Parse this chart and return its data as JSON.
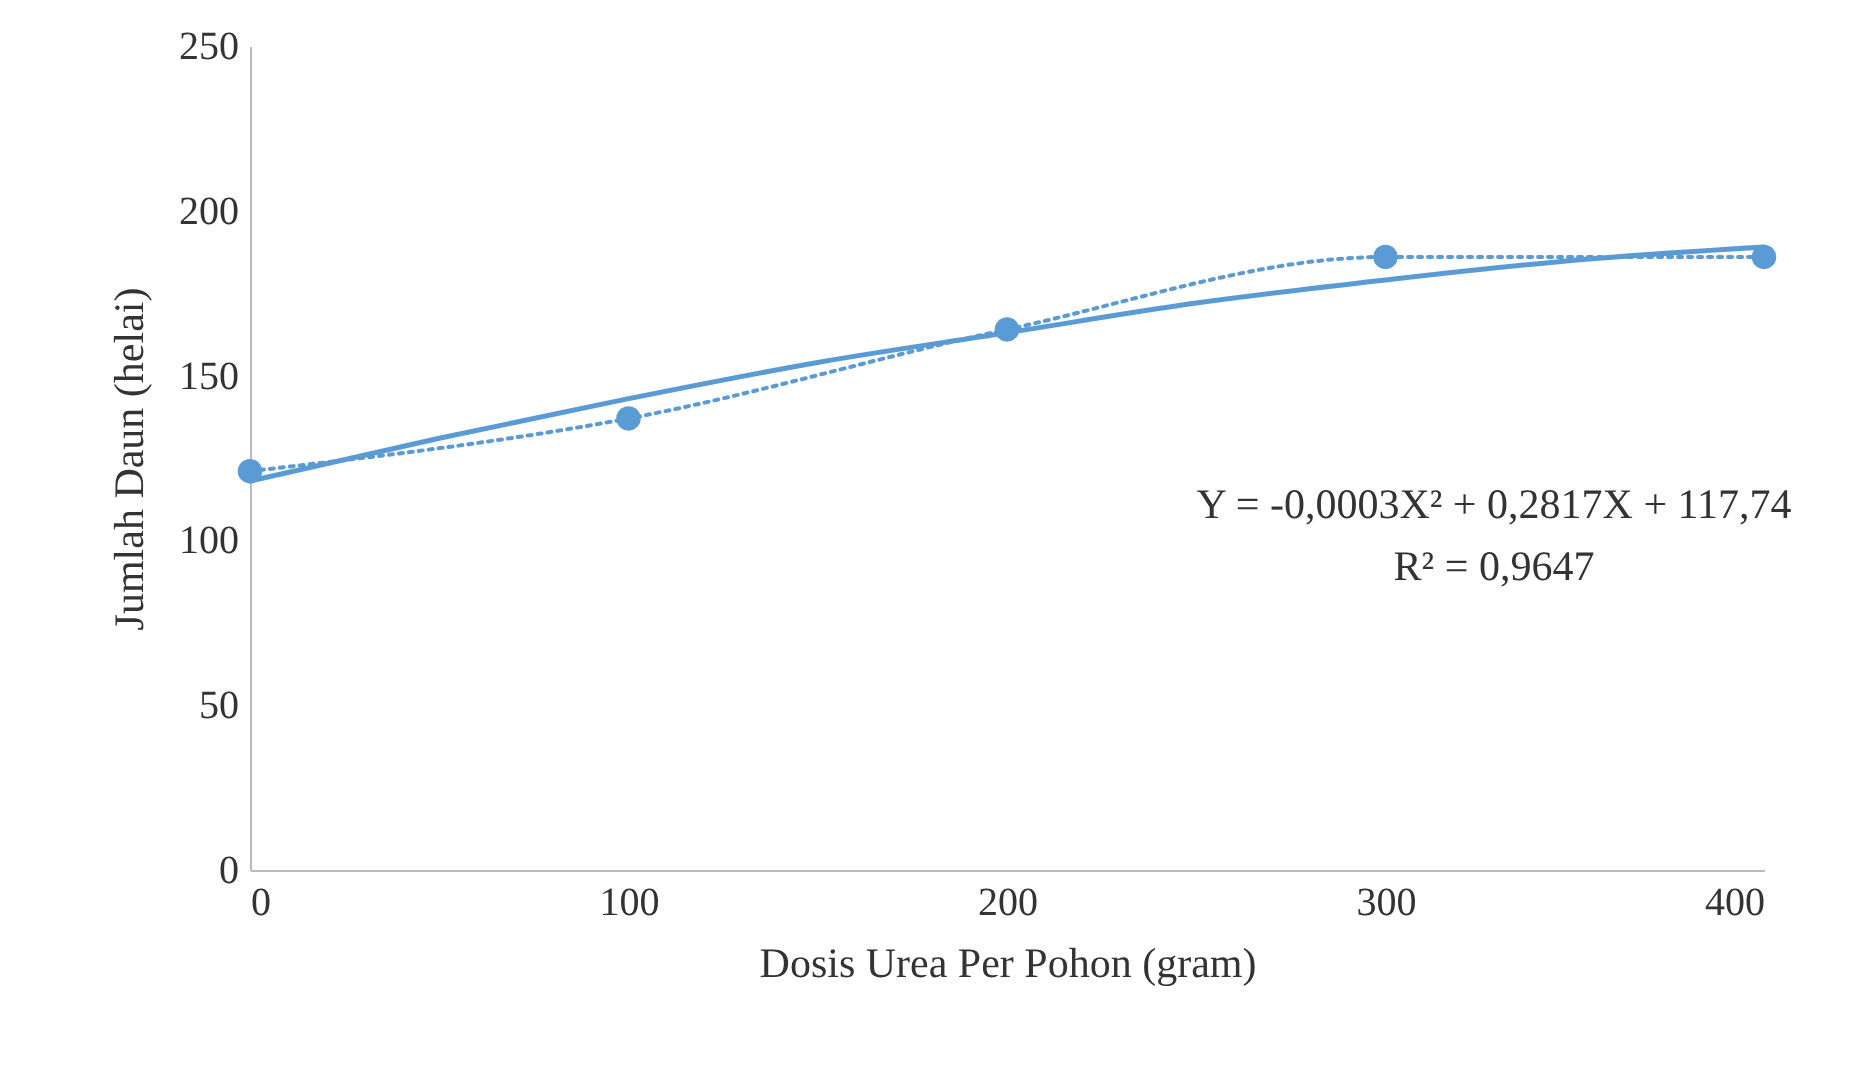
{
  "chart_data": {
    "type": "line",
    "xlabel": "Dosis Urea Per Pohon (gram)",
    "ylabel": "Jumlah Daun (helai)",
    "x": [
      0,
      100,
      200,
      300,
      400
    ],
    "series": [
      {
        "color": "#5b9bd5",
        "marker": "circle",
        "line_style": "dotted",
        "values": [
          121,
          137,
          164,
          186,
          186
        ]
      },
      {
        "color": "#5b9bd5",
        "marker": "none",
        "line_style": "solid",
        "x": [
          0,
          50,
          100,
          150,
          200,
          250,
          300,
          350,
          400
        ],
        "values": [
          118,
          131,
          143,
          154,
          163,
          172,
          179,
          185,
          189
        ]
      }
    ],
    "xlim": [
      0,
      400
    ],
    "xticks": [
      0,
      100,
      200,
      300,
      400
    ],
    "ylim": [
      0,
      250
    ],
    "yticks": [
      0,
      50,
      100,
      150,
      200,
      250
    ],
    "grid": false,
    "annotations": [
      "Y = -0,0003X² + 0,2817X + 117,74",
      "R² = 0,9647"
    ]
  }
}
